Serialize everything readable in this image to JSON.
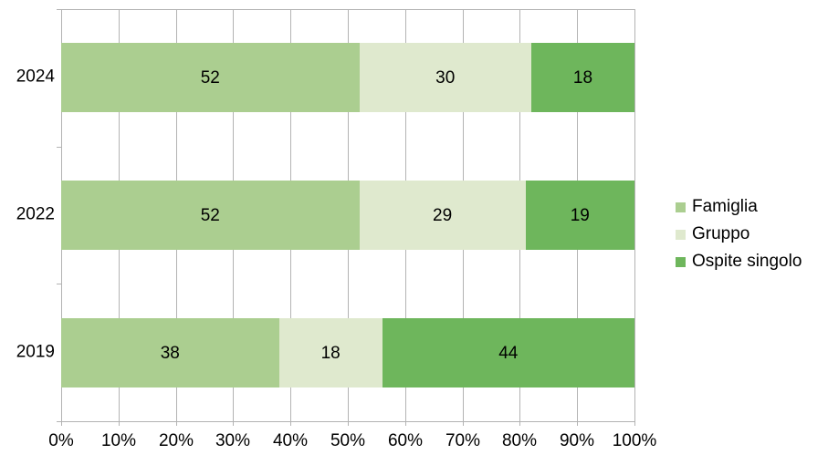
{
  "chart_data": {
    "type": "bar",
    "orientation": "horizontal",
    "stacked": true,
    "unit": "percent",
    "title": "",
    "xlabel": "",
    "ylabel": "",
    "categories": [
      "2024",
      "2022",
      "2019"
    ],
    "series": [
      {
        "name": "Famiglia",
        "color": "#abce90",
        "values": [
          52,
          52,
          38
        ]
      },
      {
        "name": "Gruppo",
        "color": "#dfe9ce",
        "values": [
          30,
          29,
          18
        ]
      },
      {
        "name": "Ospite singolo",
        "color": "#6eb65c",
        "values": [
          18,
          19,
          44
        ]
      }
    ],
    "data_labels": [
      [
        "52",
        "30",
        "18"
      ],
      [
        "52",
        "29",
        "19"
      ],
      [
        "38",
        "18",
        "44"
      ]
    ],
    "x_axis": {
      "min": 0,
      "max": 100,
      "tick_step": 10,
      "tick_labels": [
        "0%",
        "10%",
        "20%",
        "30%",
        "40%",
        "50%",
        "60%",
        "70%",
        "80%",
        "90%",
        "100%"
      ]
    },
    "legend": {
      "position": "right"
    },
    "grid": true,
    "colors": {
      "gridline": "#b3b3b3",
      "text": "#000000",
      "background": "#ffffff"
    }
  }
}
